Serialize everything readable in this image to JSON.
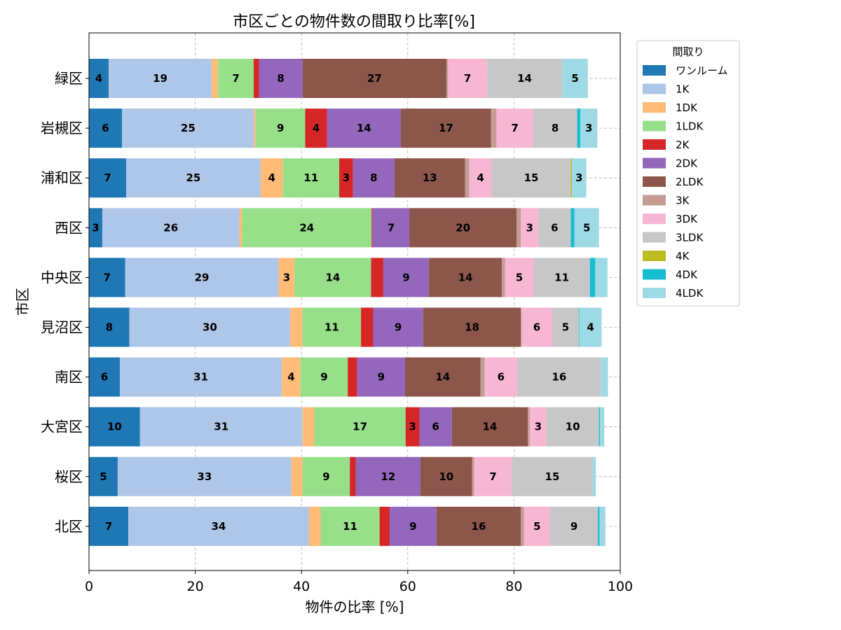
{
  "chart_data": {
    "type": "bar",
    "orientation": "horizontal",
    "stacked": true,
    "title": "市区ごとの物件数の間取り比率[%]",
    "xlabel": "物件の比率 [%]",
    "ylabel": "市区",
    "xlim": [
      0,
      100
    ],
    "xticks": [
      0,
      20,
      40,
      60,
      80,
      100
    ],
    "grid": true,
    "legend": {
      "title": "間取り",
      "placement": "outside-right"
    },
    "categories": [
      "緑区",
      "岩槻区",
      "浦和区",
      "西区",
      "中央区",
      "見沼区",
      "南区",
      "大宮区",
      "桜区",
      "北区"
    ],
    "series": [
      {
        "name": "ワンルーム",
        "color": "#1f77b4",
        "values": [
          3.7,
          6.2,
          7.0,
          2.5,
          6.8,
          7.6,
          5.8,
          9.6,
          5.4,
          7.4
        ]
      },
      {
        "name": "1K",
        "color": "#aec7e8",
        "values": [
          19.4,
          24.9,
          25.3,
          25.8,
          28.9,
          30.3,
          30.5,
          30.6,
          32.7,
          34.0
        ]
      },
      {
        "name": "1DK",
        "color": "#ffbb78",
        "values": [
          1.2,
          0.3,
          4.2,
          0.5,
          3.0,
          2.3,
          3.5,
          2.2,
          2.1,
          2.2
        ]
      },
      {
        "name": "1LDK",
        "color": "#98df8a",
        "values": [
          6.7,
          9.3,
          10.6,
          24.4,
          14.4,
          11.0,
          8.9,
          17.2,
          8.9,
          11.1
        ]
      },
      {
        "name": "2K",
        "color": "#d62728",
        "values": [
          1.0,
          4.1,
          2.6,
          0.2,
          2.3,
          2.3,
          1.8,
          2.6,
          1.1,
          1.9
        ]
      },
      {
        "name": "2DK",
        "color": "#9467bd",
        "values": [
          8.2,
          13.9,
          7.8,
          6.9,
          8.6,
          9.4,
          9.0,
          6.1,
          12.2,
          8.8
        ]
      },
      {
        "name": "2LDK",
        "color": "#8c564b",
        "values": [
          27.1,
          17.0,
          13.3,
          20.2,
          13.7,
          18.4,
          14.2,
          14.3,
          9.7,
          15.9
        ]
      },
      {
        "name": "3K",
        "color": "#c49c94",
        "values": [
          0.3,
          1.0,
          0.8,
          0.8,
          0.6,
          0.1,
          0.8,
          0.4,
          0.4,
          0.6
        ]
      },
      {
        "name": "3DK",
        "color": "#f7b6d2",
        "values": [
          7.3,
          6.9,
          4.2,
          3.3,
          5.4,
          5.8,
          6.1,
          3.1,
          7.1,
          4.9
        ]
      },
      {
        "name": "3LDK",
        "color": "#c7c7c7",
        "values": [
          14.2,
          8.3,
          14.9,
          6.1,
          10.6,
          5.0,
          15.8,
          9.9,
          15.2,
          9.0
        ]
      },
      {
        "name": "4K",
        "color": "#bcbd22",
        "values": [
          0.0,
          0.0,
          0.2,
          0.0,
          0.0,
          0.0,
          0.0,
          0.0,
          0.0,
          0.0
        ]
      },
      {
        "name": "4DK",
        "color": "#17becf",
        "values": [
          0.0,
          0.6,
          0.0,
          0.7,
          1.0,
          0.1,
          0.0,
          0.2,
          0.0,
          0.3
        ]
      },
      {
        "name": "4LDK",
        "color": "#9edae5",
        "values": [
          4.8,
          3.2,
          2.7,
          4.6,
          2.3,
          4.2,
          1.3,
          0.8,
          0.6,
          1.1
        ]
      }
    ]
  }
}
